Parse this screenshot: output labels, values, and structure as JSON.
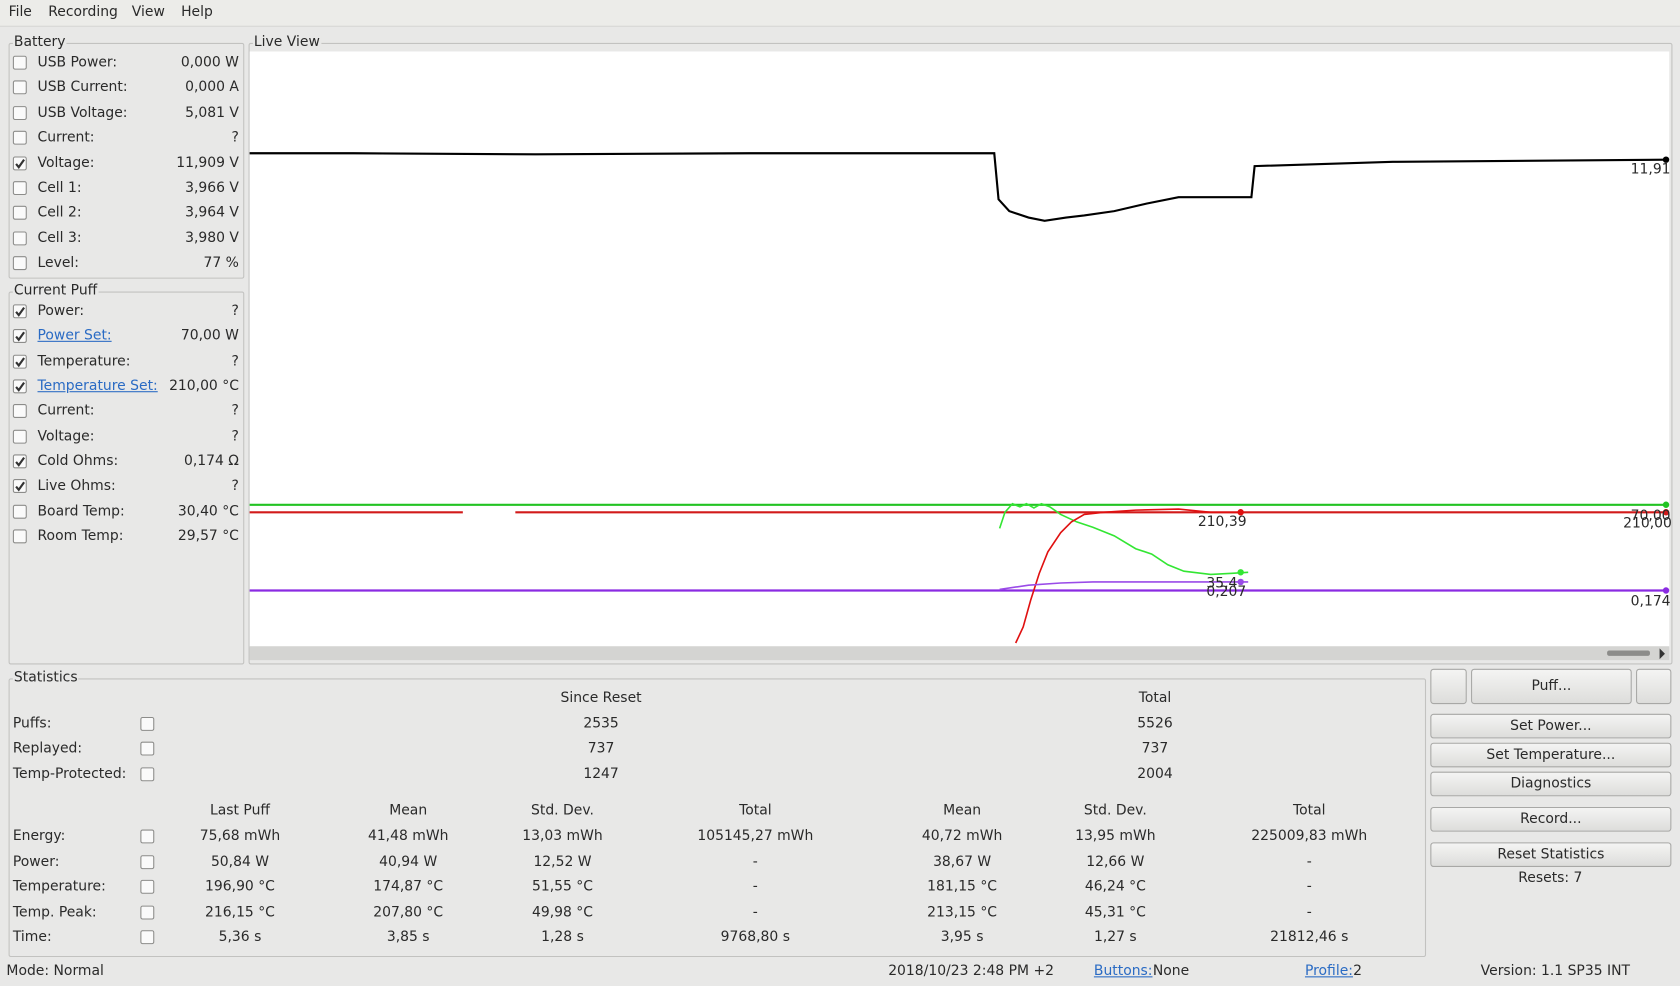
{
  "menu": [
    "File",
    "Recording",
    "View",
    "Help"
  ],
  "battery": {
    "title": "Battery",
    "rows": [
      {
        "label": "USB Power:",
        "value": "0,000 W",
        "checked": false
      },
      {
        "label": "USB Current:",
        "value": "0,000 A",
        "checked": false
      },
      {
        "label": "USB Voltage:",
        "value": "5,081 V",
        "checked": false
      },
      {
        "label": "Current:",
        "value": "?",
        "checked": false
      },
      {
        "label": "Voltage:",
        "value": "11,909 V",
        "checked": true
      },
      {
        "label": "Cell 1:",
        "value": "3,966 V",
        "checked": false
      },
      {
        "label": "Cell 2:",
        "value": "3,964 V",
        "checked": false
      },
      {
        "label": "Cell 3:",
        "value": "3,980 V",
        "checked": false
      },
      {
        "label": "Level:",
        "value": "77 %",
        "checked": false
      }
    ]
  },
  "current_puff": {
    "title": "Current Puff",
    "rows": [
      {
        "label": "Power:",
        "value": "?",
        "checked": true,
        "link": false
      },
      {
        "label": "Power Set:",
        "value": "70,00 W",
        "checked": true,
        "link": true
      },
      {
        "label": "Temperature:",
        "value": "?",
        "checked": true,
        "link": false
      },
      {
        "label": "Temperature Set:",
        "value": "210,00 °C",
        "checked": true,
        "link": true
      },
      {
        "label": "Current:",
        "value": "?",
        "checked": false,
        "link": false
      },
      {
        "label": "Voltage:",
        "value": "?",
        "checked": false,
        "link": false
      },
      {
        "label": "Cold Ohms:",
        "value": "0,174 Ω",
        "checked": true,
        "link": false
      },
      {
        "label": "Live Ohms:",
        "value": "?",
        "checked": true,
        "link": false
      },
      {
        "label": "Board Temp:",
        "value": "30,40 °C",
        "checked": false,
        "link": false
      },
      {
        "label": "Room Temp:",
        "value": "29,57 °C",
        "checked": false,
        "link": false
      }
    ]
  },
  "live_view": {
    "title": "Live View",
    "labels": [
      "11,91",
      "210,39",
      "70,00",
      "210,00",
      "35,4",
      "0,207",
      "0,174"
    ]
  },
  "statistics": {
    "title": "Statistics",
    "since_reset": "Since Reset",
    "total": "Total",
    "counts": [
      {
        "label": "Puffs:",
        "since_reset": "2535",
        "total": "5526"
      },
      {
        "label": "Replayed:",
        "since_reset": "737",
        "total": "737"
      },
      {
        "label": "Temp-Protected:",
        "since_reset": "1247",
        "total": "2004"
      }
    ],
    "headers": [
      "Last Puff",
      "Mean",
      "Std. Dev.",
      "Total",
      "Mean",
      "Std. Dev.",
      "Total"
    ],
    "rows": [
      {
        "label": "Energy:",
        "values": [
          "75,68 mWh",
          "41,48 mWh",
          "13,03 mWh",
          "105145,27 mWh",
          "40,72 mWh",
          "13,95 mWh",
          "225009,83 mWh"
        ]
      },
      {
        "label": "Power:",
        "values": [
          "50,84 W",
          "40,94 W",
          "12,52 W",
          "-",
          "38,67 W",
          "12,66 W",
          "-"
        ]
      },
      {
        "label": "Temperature:",
        "values": [
          "196,90 °C",
          "174,87 °C",
          "51,55 °C",
          "-",
          "181,15 °C",
          "46,24 °C",
          "-"
        ]
      },
      {
        "label": "Temp. Peak:",
        "values": [
          "216,15 °C",
          "207,80 °C",
          "49,98 °C",
          "-",
          "213,15 °C",
          "45,31 °C",
          "-"
        ]
      },
      {
        "label": "Time:",
        "values": [
          "5,36 s",
          "3,85 s",
          "1,28 s",
          "9768,80 s",
          "3,95 s",
          "1,27 s",
          "21812,46 s"
        ]
      }
    ]
  },
  "buttons": {
    "puff": "Puff...",
    "set_power": "Set Power...",
    "set_temperature": "Set Temperature...",
    "diagnostics": "Diagnostics",
    "record": "Record...",
    "reset_statistics": "Reset Statistics",
    "resets": "Resets: 7"
  },
  "status": {
    "mode": "Mode: Normal",
    "datetime": "2018/10/23 2:48 PM +2",
    "buttons_link": "Buttons:",
    "buttons_value": "None",
    "profile_link": "Profile:",
    "profile_value": "2",
    "version": "Version: 1.1 SP35 INT"
  }
}
